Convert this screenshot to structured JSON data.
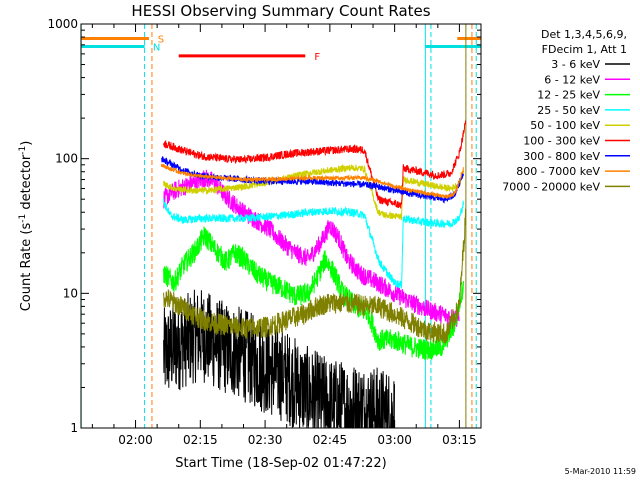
{
  "chart_data": {
    "type": "line",
    "title": "HESSI Observing Summary Count Rates",
    "xlabel": "Start Time (18-Sep-02 01:47:22)",
    "ylabel_base": "Count Rate (s",
    "ylabel_sup1": "-1",
    "ylabel_mid": " detector",
    "ylabel_sup2": "-1",
    "ylabel_end": ")",
    "y_scale": "log",
    "ylim": [
      1,
      1000
    ],
    "xlim_minutes": [
      107.37,
      200.0
    ],
    "x_ticks": [
      {
        "label": "02:00",
        "minutes": 120
      },
      {
        "label": "02:15",
        "minutes": 135
      },
      {
        "label": "02:30",
        "minutes": 150
      },
      {
        "label": "02:45",
        "minutes": 165
      },
      {
        "label": "03:00",
        "minutes": 180
      },
      {
        "label": "03:15",
        "minutes": 195
      }
    ],
    "y_ticks": [
      {
        "label": "1",
        "value": 1
      },
      {
        "label": "10",
        "value": 10
      },
      {
        "label": "100",
        "value": 100
      },
      {
        "label": "1000",
        "value": 1000
      }
    ],
    "legend_header": [
      "Det 1,3,4,5,6,9,",
      "FDecim 1, Att 1"
    ],
    "legend_position": "right",
    "timestamp": "5-Mar-2010 11:59",
    "flags": [
      {
        "letter": "S",
        "color": "#ff8000",
        "value": 780,
        "segments": [
          [
            107.4,
            123.1
          ],
          [
            194.5,
            200.0
          ]
        ]
      },
      {
        "letter": "N",
        "color": "#00e0e0",
        "value": 680,
        "segments": [
          [
            107.4,
            122.1
          ],
          [
            187.1,
            195.8
          ],
          [
            195.8,
            200.0
          ]
        ]
      },
      {
        "letter": "F",
        "color": "#ff0000",
        "value": 580,
        "segments": [
          [
            130.0,
            159.3
          ]
        ]
      }
    ],
    "markers": [
      {
        "minutes": 107.4,
        "color": "#00e0e0",
        "style": "solid"
      },
      {
        "minutes": 122.1,
        "color": "#00e0e0",
        "style": "dashed"
      },
      {
        "minutes": 123.8,
        "color": "#ff8000",
        "style": "dashed"
      },
      {
        "minutes": 187.1,
        "color": "#00e0e0",
        "style": "solid"
      },
      {
        "minutes": 188.4,
        "color": "#00e0e0",
        "style": "dashed"
      },
      {
        "minutes": 196.5,
        "color": "#808000",
        "style": "solid"
      },
      {
        "minutes": 197.9,
        "color": "#ff8000",
        "style": "dashed"
      },
      {
        "minutes": 198.9,
        "color": "#00e0e0",
        "style": "dashed"
      }
    ],
    "series": [
      {
        "name": "3 - 6 keV",
        "color": "#000000",
        "noise": 0.35,
        "points": [
          [
            126.5,
            3.5
          ],
          [
            130,
            4.2
          ],
          [
            135,
            5.0
          ],
          [
            140,
            4.0
          ],
          [
            145,
            3.5
          ],
          [
            150,
            2.8
          ],
          [
            155,
            2.4
          ],
          [
            160,
            1.8
          ],
          [
            165,
            1.5
          ],
          [
            170,
            1.4
          ],
          [
            176,
            1.3
          ],
          [
            180,
            1.2
          ]
        ]
      },
      {
        "name": "6 - 12 keV",
        "color": "#ff00ff",
        "noise": 0.07,
        "points": [
          [
            126.5,
            50
          ],
          [
            128,
            55
          ],
          [
            130,
            60
          ],
          [
            133,
            65
          ],
          [
            136,
            72
          ],
          [
            138,
            68
          ],
          [
            141,
            52
          ],
          [
            145,
            40
          ],
          [
            148,
            35
          ],
          [
            151,
            30
          ],
          [
            154,
            24
          ],
          [
            157,
            20
          ],
          [
            160,
            18
          ],
          [
            163,
            24
          ],
          [
            165,
            32
          ],
          [
            167,
            26
          ],
          [
            169,
            18
          ],
          [
            172,
            14
          ],
          [
            176,
            12
          ],
          [
            180,
            10
          ],
          [
            184,
            8.5
          ],
          [
            188,
            7.5
          ],
          [
            192,
            6.8
          ],
          [
            195,
            6.5
          ]
        ]
      },
      {
        "name": "12 - 25 keV",
        "color": "#00ff00",
        "noise": 0.08,
        "points": [
          [
            126.5,
            14
          ],
          [
            129,
            12
          ],
          [
            131,
            16
          ],
          [
            134,
            21
          ],
          [
            136,
            27
          ],
          [
            138,
            22
          ],
          [
            141,
            17
          ],
          [
            143,
            20
          ],
          [
            145,
            18
          ],
          [
            148,
            14
          ],
          [
            151,
            12
          ],
          [
            154,
            11
          ],
          [
            157,
            9.5
          ],
          [
            160,
            10
          ],
          [
            162,
            13
          ],
          [
            164,
            18
          ],
          [
            166,
            14
          ],
          [
            168,
            10
          ],
          [
            171,
            8
          ],
          [
            174,
            7
          ],
          [
            176.2,
            4.5
          ],
          [
            180,
            4.5
          ],
          [
            184,
            4
          ],
          [
            188,
            3.8
          ],
          [
            191,
            4
          ],
          [
            194,
            6
          ],
          [
            196,
            12
          ]
        ]
      },
      {
        "name": "25 - 50 keV",
        "color": "#00ffff",
        "noise": 0.03,
        "points": [
          [
            126.5,
            48
          ],
          [
            128,
            38
          ],
          [
            131,
            35
          ],
          [
            135,
            36
          ],
          [
            140,
            36
          ],
          [
            145,
            36
          ],
          [
            150,
            37
          ],
          [
            155,
            38
          ],
          [
            160,
            40
          ],
          [
            165,
            41
          ],
          [
            170,
            40
          ],
          [
            173,
            38
          ],
          [
            176.2,
            18
          ],
          [
            177,
            16
          ],
          [
            180,
            12
          ],
          [
            181.6,
            11.5
          ],
          [
            182,
            36
          ],
          [
            186,
            34
          ],
          [
            190,
            33
          ],
          [
            193,
            33
          ],
          [
            195,
            36
          ],
          [
            196,
            48
          ]
        ]
      },
      {
        "name": "50 - 100 keV",
        "color": "#d0d000",
        "noise": 0.025,
        "points": [
          [
            126.5,
            65
          ],
          [
            129,
            60
          ],
          [
            133,
            58
          ],
          [
            137,
            58
          ],
          [
            141,
            60
          ],
          [
            145,
            62
          ],
          [
            150,
            66
          ],
          [
            155,
            72
          ],
          [
            160,
            78
          ],
          [
            165,
            82
          ],
          [
            170,
            86
          ],
          [
            173,
            84
          ],
          [
            176.2,
            40
          ],
          [
            178,
            38
          ],
          [
            181.6,
            37
          ],
          [
            182,
            70
          ],
          [
            186,
            66
          ],
          [
            190,
            62
          ],
          [
            193,
            60
          ],
          [
            195,
            65
          ],
          [
            196,
            80
          ]
        ]
      },
      {
        "name": "100 - 300 keV",
        "color": "#ff0000",
        "noise": 0.03,
        "points": [
          [
            126.5,
            130
          ],
          [
            128,
            125
          ],
          [
            131,
            115
          ],
          [
            135,
            105
          ],
          [
            140,
            100
          ],
          [
            145,
            98
          ],
          [
            150,
            102
          ],
          [
            155,
            108
          ],
          [
            160,
            112
          ],
          [
            165,
            115
          ],
          [
            170,
            118
          ],
          [
            173,
            116
          ],
          [
            176.2,
            50
          ],
          [
            178,
            48
          ],
          [
            181.6,
            45
          ],
          [
            182,
            85
          ],
          [
            186,
            80
          ],
          [
            190,
            75
          ],
          [
            193,
            78
          ],
          [
            195,
            110
          ],
          [
            196.5,
            190
          ]
        ]
      },
      {
        "name": "300 - 800 keV",
        "color": "#0000ff",
        "noise": 0.025,
        "points": [
          [
            126,
            100
          ],
          [
            128,
            92
          ],
          [
            131,
            82
          ],
          [
            135,
            75
          ],
          [
            140,
            72
          ],
          [
            145,
            70
          ],
          [
            150,
            68
          ],
          [
            155,
            68
          ],
          [
            160,
            68
          ],
          [
            165,
            66
          ],
          [
            170,
            65
          ],
          [
            173,
            64
          ],
          [
            176.2,
            62
          ],
          [
            180,
            58
          ],
          [
            184,
            55
          ],
          [
            188,
            52
          ],
          [
            192,
            50
          ],
          [
            194,
            55
          ],
          [
            196,
            80
          ]
        ]
      },
      {
        "name": "800 - 7000 keV",
        "color": "#ff8000",
        "noise": 0.015,
        "points": [
          [
            126,
            90
          ],
          [
            128,
            84
          ],
          [
            131,
            78
          ],
          [
            135,
            74
          ],
          [
            140,
            72
          ],
          [
            145,
            70
          ],
          [
            150,
            70
          ],
          [
            155,
            71
          ],
          [
            160,
            72
          ],
          [
            165,
            72
          ],
          [
            170,
            72
          ],
          [
            173,
            72
          ],
          [
            176.2,
            68
          ],
          [
            180,
            62
          ],
          [
            184,
            58
          ],
          [
            188,
            55
          ],
          [
            192,
            52
          ],
          [
            194,
            55
          ],
          [
            196,
            85
          ]
        ]
      },
      {
        "name": "7000 - 20000 keV",
        "color": "#808000",
        "noise": 0.08,
        "points": [
          [
            126.5,
            9.5
          ],
          [
            129,
            8.5
          ],
          [
            132,
            7.5
          ],
          [
            135,
            6.5
          ],
          [
            138,
            6.0
          ],
          [
            141,
            5.8
          ],
          [
            145,
            5.5
          ],
          [
            150,
            5.6
          ],
          [
            153,
            6
          ],
          [
            156,
            6.5
          ],
          [
            159,
            7.0
          ],
          [
            162,
            8.0
          ],
          [
            165,
            8.5
          ],
          [
            168,
            8.5
          ],
          [
            171,
            8.3
          ],
          [
            174,
            8.0
          ],
          [
            176.2,
            8.0
          ],
          [
            180,
            7.0
          ],
          [
            184,
            6.0
          ],
          [
            188,
            5.2
          ],
          [
            192,
            5.0
          ],
          [
            195,
            8
          ],
          [
            196.5,
            40
          ]
        ]
      }
    ]
  }
}
